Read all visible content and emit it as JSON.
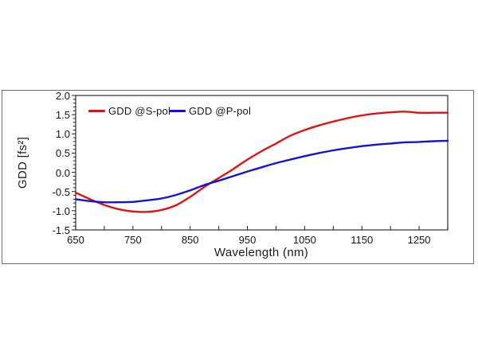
{
  "figure": {
    "type_hint": "optical coating dispersion plot",
    "frame_color": "#6e6e6e",
    "background": "#ffffff"
  },
  "chart_data": {
    "type": "line",
    "title": "",
    "xlabel": "Wavelength (nm)",
    "ylabel": "GDD [fs²]",
    "xlim": [
      650,
      1300
    ],
    "ylim": [
      -1.5,
      2.0
    ],
    "grid": false,
    "legend_position": "top-left-inside",
    "x_tick_labels": [
      "650",
      "750",
      "850",
      "950",
      "1050",
      "1150",
      "1250"
    ],
    "x_tick_values": [
      650,
      750,
      850,
      950,
      1050,
      1150,
      1250
    ],
    "x_minor_tick_step": 50,
    "y_tick_labels": [
      "2.0",
      "1.5",
      "1.0",
      "0.5",
      "0.0",
      "-0.5",
      "-1.0",
      "-1.5"
    ],
    "y_tick_values": [
      2.0,
      1.5,
      1.0,
      0.5,
      0.0,
      -0.5,
      -1.0,
      -1.5
    ],
    "y_minor_tick_step": 0.1,
    "x": [
      650,
      675,
      700,
      725,
      750,
      775,
      800,
      825,
      850,
      875,
      900,
      925,
      950,
      975,
      1000,
      1025,
      1050,
      1075,
      1100,
      1125,
      1150,
      1175,
      1200,
      1225,
      1250,
      1275,
      1300
    ],
    "series": [
      {
        "name": "GDD @S-pol",
        "color": "#e01212",
        "values": [
          -0.53,
          -0.7,
          -0.85,
          -0.96,
          -1.02,
          -1.03,
          -0.98,
          -0.86,
          -0.64,
          -0.38,
          -0.15,
          0.08,
          0.33,
          0.55,
          0.75,
          0.95,
          1.1,
          1.22,
          1.32,
          1.41,
          1.48,
          1.53,
          1.56,
          1.58,
          1.55,
          1.55,
          1.55
        ]
      },
      {
        "name": "GDD @P-pol",
        "color": "#1414d2",
        "values": [
          -0.7,
          -0.75,
          -0.78,
          -0.78,
          -0.77,
          -0.73,
          -0.68,
          -0.59,
          -0.47,
          -0.33,
          -0.22,
          -0.1,
          0.02,
          0.13,
          0.24,
          0.33,
          0.42,
          0.5,
          0.57,
          0.63,
          0.68,
          0.72,
          0.75,
          0.78,
          0.79,
          0.81,
          0.82
        ]
      }
    ],
    "axis_color": "#3f3f3f",
    "tick_color": "#222222"
  }
}
